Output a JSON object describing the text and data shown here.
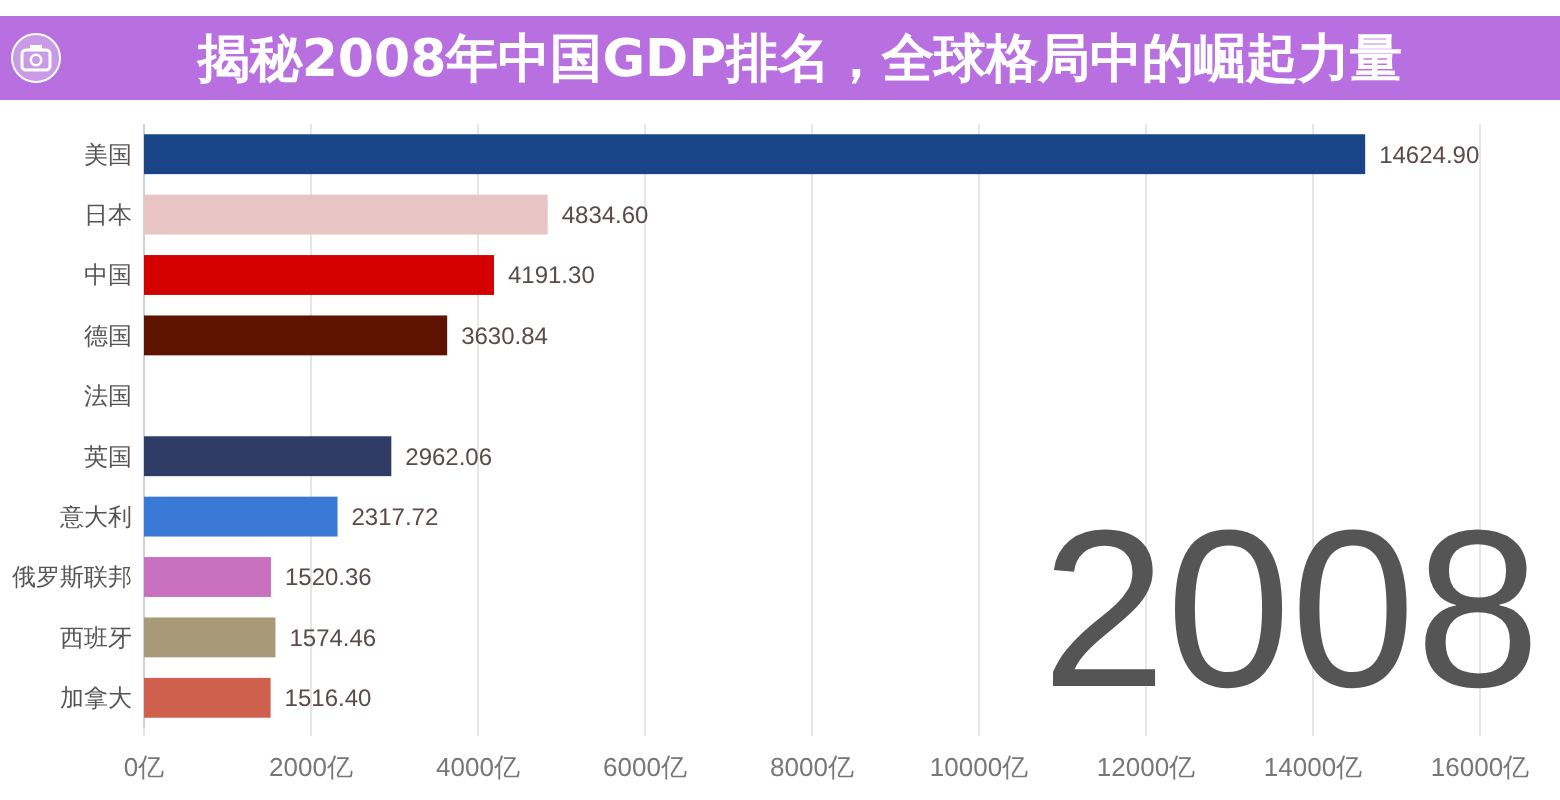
{
  "chart_data": {
    "type": "bar",
    "orientation": "horizontal",
    "title": "揭秘2008年中国GDP排名，全球格局中的崛起力量",
    "categories": [
      "美国",
      "日本",
      "中国",
      "德国",
      "法国",
      "英国",
      "意大利",
      "俄罗斯联邦",
      "西班牙",
      "加拿大"
    ],
    "values": [
      14624.9,
      4834.6,
      4191.3,
      3630.84,
      null,
      2962.06,
      2317.72,
      1520.36,
      1574.46,
      1516.4
    ],
    "colors": [
      "#1a4488",
      "#e8c4c4",
      "#d40000",
      "#5e1200",
      null,
      "#2f3d66",
      "#3a7ad6",
      "#c86fc0",
      "#a89a78",
      "#d0604e"
    ],
    "value_labels": [
      "14624.90",
      "4834.60",
      "4191.30",
      "3630.84",
      null,
      "2962.06",
      "2317.72",
      "1520.36",
      "1574.46",
      "1516.40"
    ],
    "xlim": [
      0,
      16000
    ],
    "xticks": [
      {
        "value": 0,
        "label": "0亿"
      },
      {
        "value": 2000,
        "label": "2000亿"
      },
      {
        "value": 4000,
        "label": "4000亿"
      },
      {
        "value": 6000,
        "label": "6000亿"
      },
      {
        "value": 8000,
        "label": "8000亿"
      },
      {
        "value": 10000,
        "label": "10000亿"
      },
      {
        "value": 12000,
        "label": "12000亿"
      },
      {
        "value": 14000,
        "label": "14000亿"
      },
      {
        "value": 16000,
        "label": "16000亿"
      }
    ],
    "grid": "x",
    "annotations": [
      "2008"
    ]
  }
}
